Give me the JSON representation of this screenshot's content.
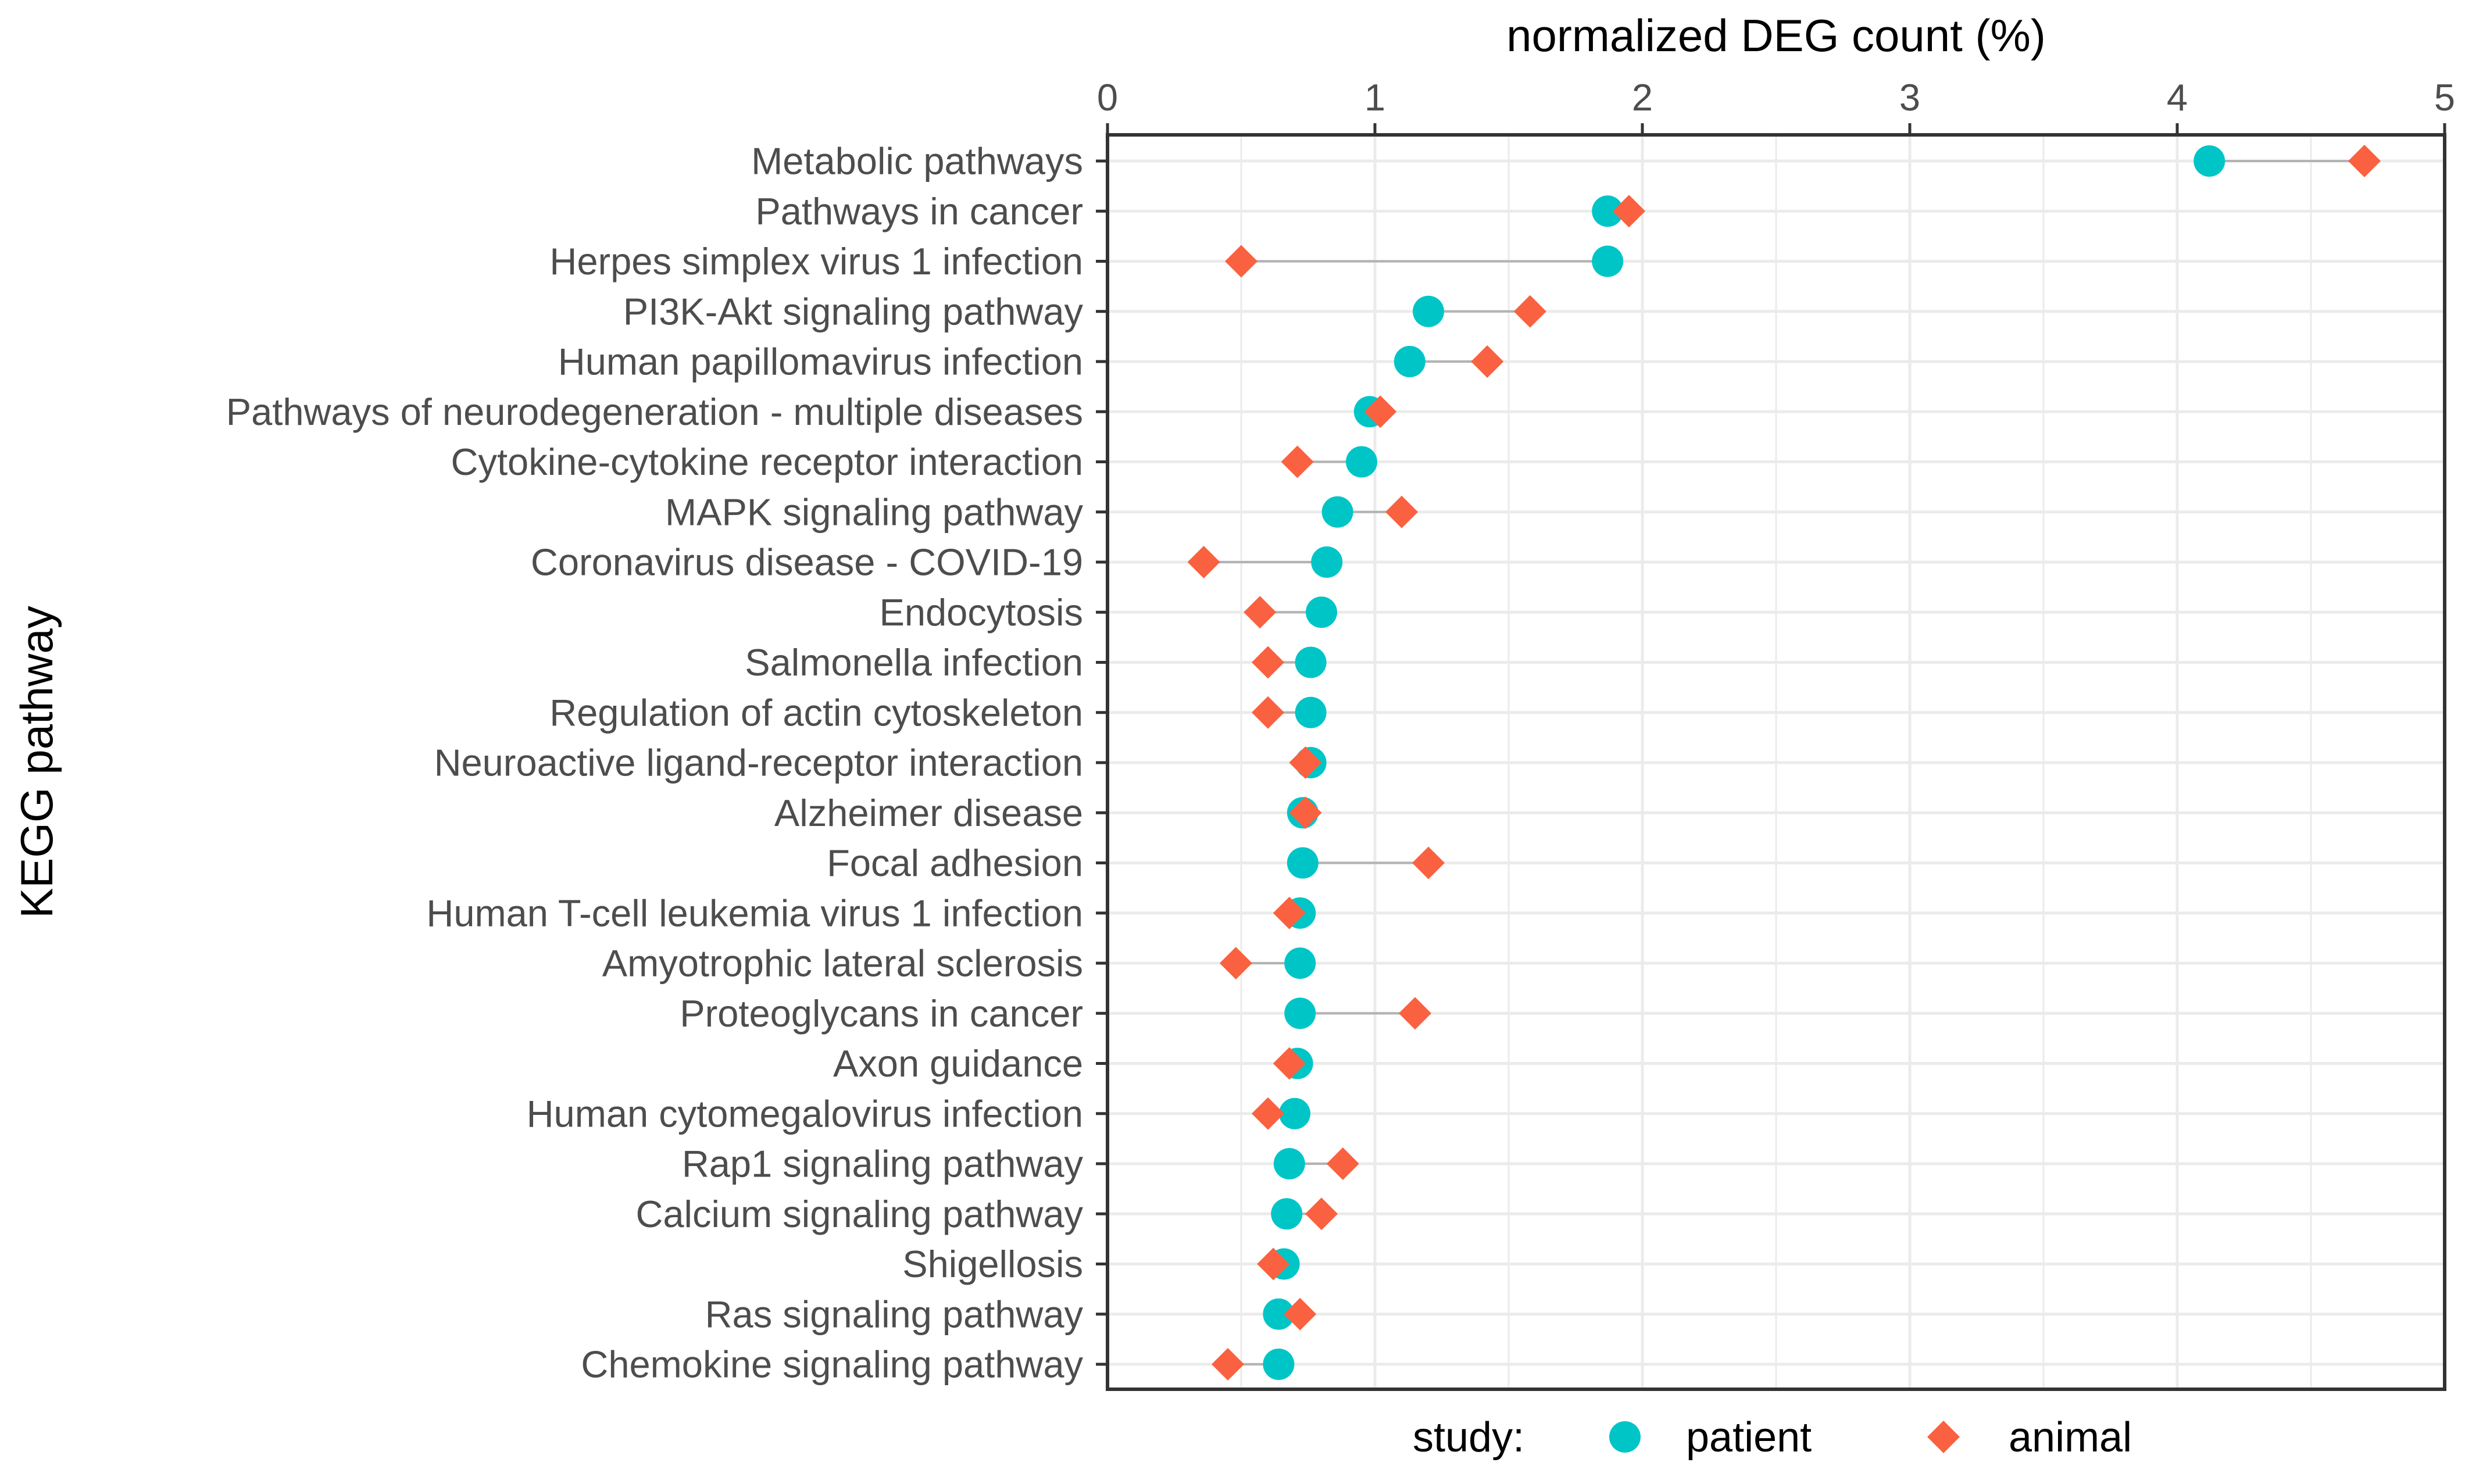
{
  "chart_data": {
    "type": "dot",
    "title": "",
    "xlabel": "normalized DEG count (%)",
    "ylabel": "KEGG pathway",
    "xlim": [
      0,
      5
    ],
    "xticks": [
      "0",
      "1",
      "2",
      "3",
      "4",
      "5"
    ],
    "grid": true,
    "legend": {
      "title": "study:",
      "position": "bottom",
      "entries": [
        {
          "name": "patient",
          "color": "#00c5c6",
          "shape": "circle"
        },
        {
          "name": "animal",
          "color": "#fa6140",
          "shape": "diamond"
        }
      ]
    },
    "categories": [
      "Metabolic pathways",
      "Pathways in cancer",
      "Herpes simplex virus 1 infection",
      "PI3K-Akt signaling pathway",
      "Human papillomavirus infection",
      "Pathways of neurodegeneration - multiple diseases",
      "Cytokine-cytokine receptor interaction",
      "MAPK signaling pathway",
      "Coronavirus disease - COVID-19",
      "Endocytosis",
      "Salmonella infection",
      "Regulation of actin cytoskeleton",
      "Neuroactive ligand-receptor interaction",
      "Alzheimer disease",
      "Focal adhesion",
      "Human T-cell leukemia virus 1 infection",
      "Amyotrophic lateral sclerosis",
      "Proteoglycans in cancer",
      "Axon guidance",
      "Human cytomegalovirus infection",
      "Rap1 signaling pathway",
      "Calcium signaling pathway",
      "Shigellosis",
      "Ras signaling pathway",
      "Chemokine signaling pathway"
    ],
    "series": [
      {
        "name": "patient",
        "values": [
          4.12,
          1.87,
          1.87,
          1.2,
          1.13,
          0.98,
          0.95,
          0.86,
          0.82,
          0.8,
          0.76,
          0.76,
          0.76,
          0.73,
          0.73,
          0.72,
          0.72,
          0.72,
          0.71,
          0.7,
          0.68,
          0.67,
          0.66,
          0.64,
          0.64
        ]
      },
      {
        "name": "animal",
        "values": [
          4.7,
          1.95,
          0.5,
          1.58,
          1.42,
          1.02,
          0.71,
          1.1,
          0.36,
          0.57,
          0.6,
          0.6,
          0.74,
          0.74,
          1.2,
          0.68,
          0.48,
          1.15,
          0.68,
          0.6,
          0.88,
          0.8,
          0.62,
          0.72,
          0.45
        ]
      }
    ]
  }
}
